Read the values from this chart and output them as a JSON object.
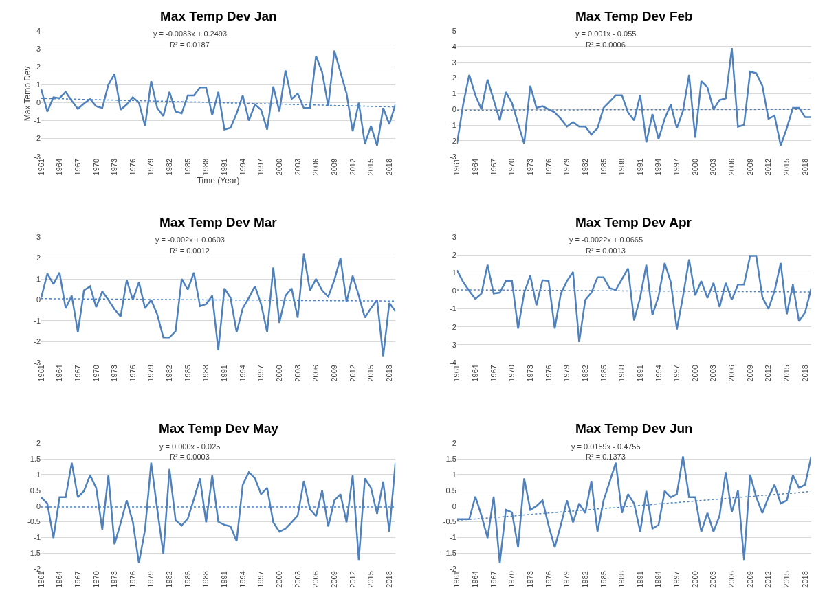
{
  "chart_data": [
    {
      "type": "line",
      "title": "Max Temp Dev Jan",
      "xlabel": "Time (Year)",
      "ylabel": "Max Temp Dev",
      "x": [
        1961,
        1962,
        1963,
        1964,
        1965,
        1966,
        1967,
        1968,
        1969,
        1970,
        1971,
        1972,
        1973,
        1974,
        1975,
        1976,
        1977,
        1978,
        1979,
        1980,
        1981,
        1982,
        1983,
        1984,
        1985,
        1986,
        1987,
        1988,
        1989,
        1990,
        1991,
        1992,
        1993,
        1994,
        1995,
        1996,
        1997,
        1998,
        1999,
        2000,
        2001,
        2002,
        2003,
        2004,
        2005,
        2006,
        2007,
        2008,
        2009,
        2010,
        2011,
        2012,
        2013,
        2014,
        2015,
        2016,
        2017,
        2018,
        2019
      ],
      "xlim": [
        1961,
        2019
      ],
      "xticks": [
        1961,
        1964,
        1967,
        1970,
        1973,
        1976,
        1979,
        1982,
        1985,
        1988,
        1991,
        1994,
        1997,
        2000,
        2003,
        2006,
        2009,
        2012,
        2015,
        2018
      ],
      "ylim": [
        -3,
        4
      ],
      "yticks": [
        -3,
        -2,
        -1,
        0,
        1,
        2,
        3,
        4
      ],
      "grid": "y",
      "annotations": [
        "y = -0.0083x + 0.2493",
        "R² = 0.0187"
      ],
      "series": [
        {
          "color": "#4f81bd",
          "values": [
            0.75,
            -0.5,
            0.3,
            0.25,
            0.6,
            0.1,
            -0.35,
            -0.05,
            0.2,
            -0.2,
            -0.3,
            1.0,
            1.6,
            -0.4,
            -0.1,
            0.3,
            0.0,
            -1.3,
            1.2,
            -0.3,
            -0.75,
            0.6,
            -0.5,
            -0.6,
            0.4,
            0.4,
            0.85,
            0.85,
            -0.7,
            0.6,
            -1.5,
            -1.4,
            -0.6,
            0.4,
            -1.0,
            -0.1,
            -0.4,
            -1.5,
            0.9,
            -0.5,
            1.8,
            0.2,
            0.5,
            -0.3,
            -0.3,
            2.6,
            1.7,
            -0.2,
            2.9,
            1.7,
            0.5,
            -1.6,
            0.0,
            -2.3,
            -1.3,
            -2.4,
            -0.3,
            -1.2,
            -0.1
          ]
        },
        {
          "type": "line",
          "color": "#4f81bd",
          "line_style": "dotted",
          "values": [
            0.24,
            0.23,
            0.22,
            0.22,
            0.21,
            0.2,
            0.19,
            0.18,
            0.17,
            0.17,
            0.16,
            0.15,
            0.14,
            0.13,
            0.12,
            0.12,
            0.11,
            0.1,
            0.09,
            0.08,
            0.08,
            0.07,
            0.06,
            0.05,
            0.04,
            0.03,
            0.03,
            0.02,
            0.01,
            0.0,
            -0.01,
            -0.02,
            -0.02,
            -0.03,
            -0.04,
            -0.05,
            -0.06,
            -0.07,
            -0.07,
            -0.08,
            -0.09,
            -0.1,
            -0.11,
            -0.12,
            -0.12,
            -0.13,
            -0.14,
            -0.15,
            -0.16,
            -0.17,
            -0.17,
            -0.18,
            -0.19,
            -0.2,
            -0.21,
            -0.22,
            -0.22,
            -0.23,
            -0.24
          ]
        }
      ]
    },
    {
      "type": "line",
      "title": "Max Temp Dev Feb",
      "x": [
        1961,
        1962,
        1963,
        1964,
        1965,
        1966,
        1967,
        1968,
        1969,
        1970,
        1971,
        1972,
        1973,
        1974,
        1975,
        1976,
        1977,
        1978,
        1979,
        1980,
        1981,
        1982,
        1983,
        1984,
        1985,
        1986,
        1987,
        1988,
        1989,
        1990,
        1991,
        1992,
        1993,
        1994,
        1995,
        1996,
        1997,
        1998,
        1999,
        2000,
        2001,
        2002,
        2003,
        2004,
        2005,
        2006,
        2007,
        2008,
        2009,
        2010,
        2011,
        2012,
        2013,
        2014,
        2015,
        2016,
        2017,
        2018,
        2019
      ],
      "xlim": [
        1961,
        2019
      ],
      "xticks": [
        1961,
        1964,
        1967,
        1970,
        1973,
        1976,
        1979,
        1982,
        1985,
        1988,
        1991,
        1994,
        1997,
        2000,
        2003,
        2006,
        2009,
        2012,
        2015,
        2018
      ],
      "ylim": [
        -3,
        5
      ],
      "yticks": [
        -3,
        -2,
        -1,
        0,
        1,
        2,
        3,
        4,
        5
      ],
      "grid": "y",
      "annotations": [
        "y = 0.001x - 0.055",
        "R² = 0.0006"
      ],
      "series": [
        {
          "color": "#4f81bd",
          "values": [
            -2.2,
            0.3,
            2.2,
            0.9,
            0.0,
            1.9,
            0.6,
            -0.7,
            1.1,
            0.4,
            -0.9,
            -2.2,
            1.5,
            0.1,
            0.2,
            0.0,
            -0.2,
            -0.6,
            -1.1,
            -0.8,
            -1.1,
            -1.1,
            -1.6,
            -1.2,
            0.1,
            0.5,
            0.9,
            0.9,
            -0.2,
            -0.7,
            0.9,
            -2.1,
            -0.3,
            -1.9,
            -0.6,
            0.3,
            -1.2,
            -0.1,
            2.2,
            -1.8,
            1.8,
            1.4,
            0.0,
            0.6,
            0.7,
            3.9,
            -1.1,
            -1.0,
            2.4,
            2.3,
            1.5,
            -0.6,
            -0.4,
            -2.3,
            -1.2,
            0.1,
            0.1,
            -0.5,
            -0.5
          ]
        },
        {
          "type": "line",
          "color": "#4f81bd",
          "line_style": "dotted",
          "values": [
            -0.05,
            -0.05,
            -0.05,
            -0.05,
            -0.05,
            -0.05,
            -0.05,
            -0.05,
            -0.05,
            -0.05,
            -0.04,
            -0.04,
            -0.04,
            -0.04,
            -0.04,
            -0.04,
            -0.04,
            -0.04,
            -0.04,
            -0.04,
            -0.03,
            -0.03,
            -0.03,
            -0.03,
            -0.03,
            -0.03,
            -0.03,
            -0.03,
            -0.03,
            -0.03,
            -0.02,
            -0.02,
            -0.02,
            -0.02,
            -0.02,
            -0.02,
            -0.02,
            -0.02,
            -0.02,
            -0.02,
            -0.01,
            -0.01,
            -0.01,
            -0.01,
            -0.01,
            -0.01,
            -0.01,
            -0.01,
            -0.01,
            -0.01,
            0.0,
            0.0,
            0.0,
            0.0,
            0.0,
            0.0,
            0.0,
            0.0,
            0.0
          ]
        }
      ]
    },
    {
      "type": "line",
      "title": "Max Temp Dev Mar",
      "x": [
        1961,
        1962,
        1963,
        1964,
        1965,
        1966,
        1967,
        1968,
        1969,
        1970,
        1971,
        1972,
        1973,
        1974,
        1975,
        1976,
        1977,
        1978,
        1979,
        1980,
        1981,
        1982,
        1983,
        1984,
        1985,
        1986,
        1987,
        1988,
        1989,
        1990,
        1991,
        1992,
        1993,
        1994,
        1995,
        1996,
        1997,
        1998,
        1999,
        2000,
        2001,
        2002,
        2003,
        2004,
        2005,
        2006,
        2007,
        2008,
        2009,
        2010,
        2011,
        2012,
        2013,
        2014,
        2015,
        2016,
        2017,
        2018,
        2019
      ],
      "xlim": [
        1961,
        2019
      ],
      "xticks": [
        1961,
        1964,
        1967,
        1970,
        1973,
        1976,
        1979,
        1982,
        1985,
        1988,
        1991,
        1994,
        1997,
        2000,
        2003,
        2006,
        2009,
        2012,
        2015,
        2018
      ],
      "ylim": [
        -3,
        3
      ],
      "yticks": [
        -3,
        -2,
        -1,
        0,
        1,
        2,
        3
      ],
      "grid": "y",
      "annotations": [
        "y = -0.002x + 0.0603",
        "R² = 0.0012"
      ],
      "series": [
        {
          "color": "#4f81bd",
          "values": [
            0.1,
            1.25,
            0.75,
            1.3,
            -0.4,
            0.2,
            -1.55,
            0.45,
            0.65,
            -0.35,
            0.4,
            0.0,
            -0.45,
            -0.8,
            0.95,
            0.0,
            0.85,
            -0.4,
            0.0,
            -0.7,
            -1.8,
            -1.8,
            -1.5,
            1.0,
            0.5,
            1.3,
            -0.3,
            -0.2,
            0.2,
            -2.4,
            0.55,
            0.1,
            -1.55,
            -0.4,
            0.1,
            0.65,
            -0.2,
            -1.55,
            1.55,
            -1.1,
            0.2,
            0.55,
            -0.85,
            2.2,
            0.45,
            1.0,
            0.45,
            0.15,
            0.95,
            2.0,
            -0.1,
            1.15,
            0.2,
            -0.85,
            -0.4,
            0.0,
            -2.7,
            -0.15,
            -0.55
          ]
        },
        {
          "type": "line",
          "color": "#4f81bd",
          "line_style": "dotted",
          "values": [
            0.06,
            0.06,
            0.05,
            0.05,
            0.05,
            0.05,
            0.05,
            0.04,
            0.04,
            0.04,
            0.04,
            0.04,
            0.03,
            0.03,
            0.03,
            0.03,
            0.03,
            0.02,
            0.02,
            0.02,
            0.02,
            0.02,
            0.01,
            0.01,
            0.01,
            0.01,
            0.01,
            0.0,
            0.0,
            0.0,
            0.0,
            0.0,
            -0.01,
            -0.01,
            -0.01,
            -0.01,
            -0.01,
            -0.02,
            -0.02,
            -0.02,
            -0.02,
            -0.02,
            -0.03,
            -0.03,
            -0.03,
            -0.03,
            -0.03,
            -0.04,
            -0.04,
            -0.04,
            -0.04,
            -0.04,
            -0.05,
            -0.05,
            -0.05,
            -0.05,
            -0.05,
            -0.06,
            -0.06
          ]
        }
      ]
    },
    {
      "type": "line",
      "title": "Max Temp Dev Apr",
      "x": [
        1961,
        1962,
        1963,
        1964,
        1965,
        1966,
        1967,
        1968,
        1969,
        1970,
        1971,
        1972,
        1973,
        1974,
        1975,
        1976,
        1977,
        1978,
        1979,
        1980,
        1981,
        1982,
        1983,
        1984,
        1985,
        1986,
        1987,
        1988,
        1989,
        1990,
        1991,
        1992,
        1993,
        1994,
        1995,
        1996,
        1997,
        1998,
        1999,
        2000,
        2001,
        2002,
        2003,
        2004,
        2005,
        2006,
        2007,
        2008,
        2009,
        2010,
        2011,
        2012,
        2013,
        2014,
        2015,
        2016,
        2017,
        2018,
        2019
      ],
      "xlim": [
        1961,
        2019
      ],
      "xticks": [
        1961,
        1964,
        1967,
        1970,
        1973,
        1976,
        1979,
        1982,
        1985,
        1988,
        1991,
        1994,
        1997,
        2000,
        2003,
        2006,
        2009,
        2012,
        2015,
        2018
      ],
      "ylim": [
        -4,
        3
      ],
      "yticks": [
        -4,
        -3,
        -2,
        -1,
        0,
        1,
        2,
        3
      ],
      "grid": "y",
      "annotations": [
        "y = -0.0022x + 0.0665",
        "R² = 0.0013"
      ],
      "series": [
        {
          "color": "#4f81bd",
          "values": [
            1.15,
            0.5,
            0.0,
            -0.45,
            -0.15,
            1.45,
            -0.15,
            -0.1,
            0.55,
            0.55,
            -2.1,
            -0.1,
            0.85,
            -0.8,
            0.6,
            0.55,
            -2.1,
            -0.15,
            0.55,
            1.05,
            -2.85,
            -0.5,
            -0.1,
            0.75,
            0.75,
            0.15,
            0.05,
            0.65,
            1.25,
            -1.65,
            -0.35,
            1.45,
            -1.35,
            -0.3,
            1.55,
            0.5,
            -2.15,
            -0.3,
            1.75,
            -0.25,
            0.55,
            -0.4,
            0.45,
            -0.9,
            0.45,
            -0.5,
            0.35,
            0.35,
            1.95,
            1.95,
            -0.35,
            -1.0,
            0.0,
            1.55,
            -1.3,
            0.35,
            -1.7,
            -1.2,
            0.15
          ]
        },
        {
          "type": "line",
          "color": "#4f81bd",
          "line_style": "dotted",
          "values": [
            0.06,
            0.06,
            0.06,
            0.06,
            0.06,
            0.05,
            0.05,
            0.05,
            0.05,
            0.04,
            0.04,
            0.04,
            0.04,
            0.04,
            0.03,
            0.03,
            0.03,
            0.03,
            0.02,
            0.02,
            0.02,
            0.02,
            0.02,
            0.01,
            0.01,
            0.01,
            0.01,
            0.0,
            0.0,
            0.0,
            0.0,
            0.0,
            -0.01,
            -0.01,
            -0.01,
            -0.01,
            -0.01,
            -0.02,
            -0.02,
            -0.02,
            -0.02,
            -0.03,
            -0.03,
            -0.03,
            -0.03,
            -0.03,
            -0.04,
            -0.04,
            -0.04,
            -0.04,
            -0.05,
            -0.05,
            -0.05,
            -0.05,
            -0.05,
            -0.06,
            -0.06,
            -0.06,
            -0.06
          ]
        }
      ]
    },
    {
      "type": "line",
      "title": "Max Temp Dev May",
      "x": [
        1961,
        1962,
        1963,
        1964,
        1965,
        1966,
        1967,
        1968,
        1969,
        1970,
        1971,
        1972,
        1973,
        1974,
        1975,
        1976,
        1977,
        1978,
        1979,
        1980,
        1981,
        1982,
        1983,
        1984,
        1985,
        1986,
        1987,
        1988,
        1989,
        1990,
        1991,
        1992,
        1993,
        1994,
        1995,
        1996,
        1997,
        1998,
        1999,
        2000,
        2001,
        2002,
        2003,
        2004,
        2005,
        2006,
        2007,
        2008,
        2009,
        2010,
        2011,
        2012,
        2013,
        2014,
        2015,
        2016,
        2017,
        2018,
        2019
      ],
      "xlim": [
        1961,
        2019
      ],
      "xticks": [
        1961,
        1964,
        1967,
        1970,
        1973,
        1976,
        1979,
        1982,
        1985,
        1988,
        1991,
        1994,
        1997,
        2000,
        2003,
        2006,
        2009,
        2012,
        2015,
        2018
      ],
      "ylim": [
        -2,
        2
      ],
      "yticks": [
        -2,
        -1.5,
        -1,
        -0.5,
        0,
        0.5,
        1,
        1.5,
        2
      ],
      "grid": "y",
      "annotations": [
        "y = 0.000x - 0.025",
        "R² = 0.0003"
      ],
      "series": [
        {
          "color": "#4f81bd",
          "values": [
            0.28,
            0.08,
            -1.02,
            0.28,
            0.28,
            1.38,
            0.28,
            0.48,
            0.98,
            0.58,
            -0.75,
            0.98,
            -1.22,
            -0.55,
            0.18,
            -0.5,
            -1.82,
            -0.75,
            1.38,
            -0.1,
            -1.52,
            1.18,
            -0.45,
            -0.62,
            -0.4,
            0.22,
            0.88,
            -0.52,
            0.98,
            -0.5,
            -0.6,
            -0.65,
            -1.12,
            0.68,
            1.08,
            0.88,
            0.38,
            0.58,
            -0.52,
            -0.82,
            -0.72,
            -0.52,
            -0.3,
            0.8,
            -0.1,
            -0.32,
            0.5,
            -0.65,
            0.18,
            0.38,
            -0.52,
            0.98,
            -1.72,
            0.88,
            0.58,
            -0.25,
            0.78,
            -0.82,
            1.38
          ]
        },
        {
          "type": "line",
          "color": "#4f81bd",
          "line_style": "dotted",
          "values": [
            -0.03,
            -0.03,
            -0.03,
            -0.03,
            -0.03,
            -0.03,
            -0.03,
            -0.03,
            -0.03,
            -0.03,
            -0.03,
            -0.03,
            -0.03,
            -0.03,
            -0.03,
            -0.03,
            -0.03,
            -0.03,
            -0.03,
            -0.03,
            -0.03,
            -0.03,
            -0.03,
            -0.03,
            -0.03,
            -0.03,
            -0.03,
            -0.03,
            -0.03,
            -0.03,
            -0.03,
            -0.03,
            -0.03,
            -0.03,
            -0.03,
            -0.03,
            -0.03,
            -0.03,
            -0.03,
            -0.03,
            -0.03,
            -0.03,
            -0.03,
            -0.03,
            -0.03,
            -0.03,
            -0.03,
            -0.03,
            -0.03,
            -0.03,
            -0.03,
            -0.03,
            -0.03,
            -0.03,
            -0.03,
            -0.03,
            -0.03,
            -0.03,
            -0.03
          ]
        }
      ]
    },
    {
      "type": "line",
      "title": "Max Temp Dev Jun",
      "x": [
        1961,
        1962,
        1963,
        1964,
        1965,
        1966,
        1967,
        1968,
        1969,
        1970,
        1971,
        1972,
        1973,
        1974,
        1975,
        1976,
        1977,
        1978,
        1979,
        1980,
        1981,
        1982,
        1983,
        1984,
        1985,
        1986,
        1987,
        1988,
        1989,
        1990,
        1991,
        1992,
        1993,
        1994,
        1995,
        1996,
        1997,
        1998,
        1999,
        2000,
        2001,
        2002,
        2003,
        2004,
        2005,
        2006,
        2007,
        2008,
        2009,
        2010,
        2011,
        2012,
        2013,
        2014,
        2015,
        2016,
        2017,
        2018,
        2019
      ],
      "xlim": [
        1961,
        2019
      ],
      "xticks": [
        1961,
        1964,
        1967,
        1970,
        1973,
        1976,
        1979,
        1982,
        1985,
        1988,
        1991,
        1994,
        1997,
        2000,
        2003,
        2006,
        2009,
        2012,
        2015,
        2018
      ],
      "ylim": [
        -2,
        2
      ],
      "yticks": [
        -2,
        -1.5,
        -1,
        -0.5,
        0,
        0.5,
        1,
        1.5,
        2
      ],
      "grid": "y",
      "annotations": [
        "y = 0.0159x - 0.4755",
        "R² = 0.1373"
      ],
      "series": [
        {
          "color": "#4f81bd",
          "values": [
            -0.42,
            -0.42,
            -0.42,
            0.3,
            -0.3,
            -1.02,
            0.3,
            -1.82,
            -0.12,
            -0.2,
            -1.32,
            0.88,
            -0.12,
            0.0,
            0.18,
            -0.62,
            -1.32,
            -0.6,
            0.18,
            -0.52,
            0.08,
            -0.22,
            0.8,
            -0.82,
            0.18,
            0.78,
            1.38,
            -0.22,
            0.38,
            0.08,
            -0.82,
            0.48,
            -0.72,
            -0.6,
            0.48,
            0.28,
            0.38,
            1.58,
            0.28,
            0.28,
            -0.82,
            -0.22,
            -0.82,
            -0.3,
            1.08,
            -0.2,
            0.5,
            -1.72,
            1.0,
            0.28,
            -0.22,
            0.28,
            0.68,
            0.08,
            0.18,
            0.98,
            0.58,
            0.68,
            1.58
          ]
        },
        {
          "type": "line",
          "color": "#4f81bd",
          "line_style": "dotted",
          "values": [
            -0.46,
            -0.44,
            -0.43,
            -0.41,
            -0.4,
            -0.38,
            -0.36,
            -0.35,
            -0.33,
            -0.32,
            -0.3,
            -0.28,
            -0.27,
            -0.25,
            -0.24,
            -0.22,
            -0.21,
            -0.19,
            -0.17,
            -0.16,
            -0.14,
            -0.13,
            -0.11,
            -0.09,
            -0.08,
            -0.06,
            -0.05,
            -0.03,
            -0.01,
            0.0,
            0.02,
            0.03,
            0.05,
            0.07,
            0.08,
            0.1,
            0.11,
            0.13,
            0.14,
            0.16,
            0.18,
            0.19,
            0.21,
            0.22,
            0.24,
            0.26,
            0.27,
            0.29,
            0.3,
            0.32,
            0.34,
            0.35,
            0.37,
            0.38,
            0.4,
            0.41,
            0.43,
            0.45,
            0.46
          ]
        }
      ]
    }
  ]
}
